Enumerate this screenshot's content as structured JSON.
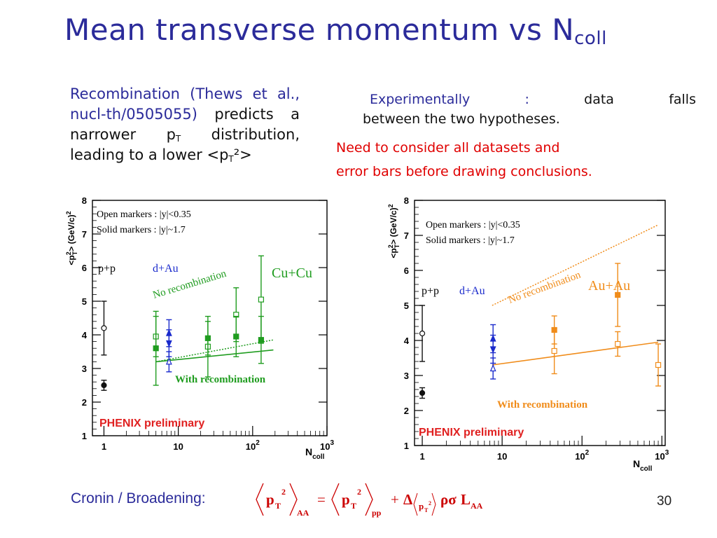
{
  "slide": {
    "title_main": "Mean transverse momentum vs N",
    "title_sub": "coll",
    "left_text": {
      "blue1": "Recombination (Thews et al., nucl-th/0505055)",
      "black1": "predicts a narrower p",
      "sub1": "T",
      "black2": "distribution, leading to a lower <p",
      "sub2": "T",
      "black3": "²>"
    },
    "right_text": {
      "experimentally": "Experimentally",
      "colon": ":",
      "data": "data",
      "falls": "falls",
      "line2": "between the two hypotheses.",
      "red1": "Need to consider all datasets and",
      "red2": "error bars before drawing conclusions."
    },
    "footer": {
      "cronin": "Cronin / Broadening:",
      "page": "30"
    },
    "formula": {
      "pT": "p",
      "T": "T",
      "sq": "2",
      "AA": "AA",
      "eq": "=",
      "pp": "pp",
      "plus": "+",
      "delta": "Δ",
      "rho_sigma": "ρσ",
      "L": "L"
    }
  },
  "chart_data": [
    {
      "type": "scatter",
      "ylabel": "<p²_T> (GeV/c)²",
      "xlabel": "N_coll",
      "xscale": "log",
      "xlim": [
        0.7,
        1000
      ],
      "ylim": [
        1,
        8
      ],
      "xticks": [
        {
          "v": 1,
          "label": "1"
        },
        {
          "v": 10,
          "label": "10"
        },
        {
          "v": 100,
          "label": "10²"
        },
        {
          "v": 1000,
          "label": "10³"
        }
      ],
      "yticks": [
        1,
        2,
        3,
        4,
        5,
        6,
        7,
        8
      ],
      "legend_open": "Open markers : |y|<0.35",
      "legend_solid": "Solid markers : |y|~1.7",
      "label_pp": "p+p",
      "label_dau": "d+Au",
      "label_system": "Cu+Cu",
      "label_norec": "No recombination",
      "label_rec": "With recombination",
      "watermark": "PHENIX preliminary",
      "system_color": "#1f9c1f",
      "norec_line": [
        [
          5,
          3.2
        ],
        [
          190,
          3.85
        ]
      ],
      "rec_line": [
        [
          5,
          3.2
        ],
        [
          190,
          3.55
        ]
      ],
      "points": [
        {
          "x": 1,
          "y": 4.2,
          "err": 0.8,
          "open": true,
          "marker": "circle",
          "color": "#111111"
        },
        {
          "x": 1,
          "y": 2.5,
          "err": 0.15,
          "open": false,
          "marker": "circle",
          "color": "#111111"
        },
        {
          "x": 7.5,
          "y": 4.05,
          "err": 0.4,
          "open": false,
          "marker": "triangle-up",
          "color": "#1a2acc"
        },
        {
          "x": 7.5,
          "y": 3.75,
          "err": 0.4,
          "open": false,
          "marker": "triangle-down",
          "color": "#1a2acc"
        },
        {
          "x": 7.5,
          "y": 3.2,
          "err": 0.3,
          "open": true,
          "marker": "triangle-up",
          "color": "#1a2acc"
        },
        {
          "x": 5,
          "y": 3.95,
          "err": 0.6,
          "open": true,
          "marker": "square",
          "color": "#1f9c1f"
        },
        {
          "x": 5,
          "y": 3.6,
          "err": 1.1,
          "open": false,
          "marker": "square",
          "color": "#1f9c1f"
        },
        {
          "x": 25,
          "y": 3.65,
          "err": 0.9,
          "open": true,
          "marker": "square",
          "color": "#1f9c1f"
        },
        {
          "x": 25,
          "y": 3.9,
          "err": 0.5,
          "open": false,
          "marker": "square",
          "color": "#1f9c1f"
        },
        {
          "x": 60,
          "y": 4.6,
          "err": 0.8,
          "open": true,
          "marker": "square",
          "color": "#1f9c1f"
        },
        {
          "x": 60,
          "y": 3.95,
          "err": 0.6,
          "open": false,
          "marker": "square",
          "color": "#1f9c1f"
        },
        {
          "x": 130,
          "y": 5.05,
          "err": 1.3,
          "open": true,
          "marker": "square",
          "color": "#1f9c1f"
        },
        {
          "x": 130,
          "y": 3.85,
          "err": 0.7,
          "open": false,
          "marker": "square",
          "color": "#1f9c1f"
        }
      ]
    },
    {
      "type": "scatter",
      "ylabel": "<p²_T> (GeV/c)²",
      "xlabel": "N_coll",
      "xscale": "log",
      "xlim": [
        0.8,
        1100
      ],
      "ylim": [
        1,
        8
      ],
      "xticks": [
        {
          "v": 1,
          "label": "1"
        },
        {
          "v": 10,
          "label": "10"
        },
        {
          "v": 100,
          "label": "10²"
        },
        {
          "v": 1000,
          "label": "10³"
        }
      ],
      "yticks": [
        1,
        2,
        3,
        4,
        5,
        6,
        7,
        8
      ],
      "legend_open": "Open markers : |y|<0.35",
      "legend_solid": "Solid markers : |y|~1.7",
      "label_pp": "p+p",
      "label_dau": "d+Au",
      "label_system": "Au+Au",
      "label_norec": "No recombination",
      "label_rec": "With recombination",
      "watermark": "PHENIX preliminary",
      "system_color": "#f08c1a",
      "norec_line": [
        [
          7.5,
          5.0
        ],
        [
          900,
          7.3
        ]
      ],
      "rec_line": [
        [
          7.5,
          3.3
        ],
        [
          900,
          3.95
        ]
      ],
      "points": [
        {
          "x": 1,
          "y": 4.2,
          "err": 0.8,
          "open": true,
          "marker": "circle",
          "color": "#111111"
        },
        {
          "x": 1,
          "y": 2.5,
          "err": 0.15,
          "open": false,
          "marker": "circle",
          "color": "#111111"
        },
        {
          "x": 7.7,
          "y": 4.05,
          "err": 0.4,
          "open": false,
          "marker": "triangle-up",
          "color": "#1a2acc"
        },
        {
          "x": 7.7,
          "y": 3.75,
          "err": 0.4,
          "open": false,
          "marker": "triangle-down",
          "color": "#1a2acc"
        },
        {
          "x": 7.7,
          "y": 3.2,
          "err": 0.3,
          "open": true,
          "marker": "triangle-up",
          "color": "#1a2acc"
        },
        {
          "x": 45,
          "y": 4.3,
          "err": 0.4,
          "open": false,
          "marker": "square",
          "color": "#f08c1a"
        },
        {
          "x": 45,
          "y": 3.7,
          "err": 0.65,
          "open": true,
          "marker": "square",
          "color": "#f08c1a"
        },
        {
          "x": 280,
          "y": 5.3,
          "err": 0.9,
          "open": false,
          "marker": "square",
          "color": "#f08c1a"
        },
        {
          "x": 280,
          "y": 3.9,
          "err": 0.35,
          "open": true,
          "marker": "square",
          "color": "#f08c1a"
        },
        {
          "x": 900,
          "y": 3.3,
          "err": 0.6,
          "open": true,
          "marker": "square",
          "color": "#f08c1a"
        }
      ]
    }
  ]
}
